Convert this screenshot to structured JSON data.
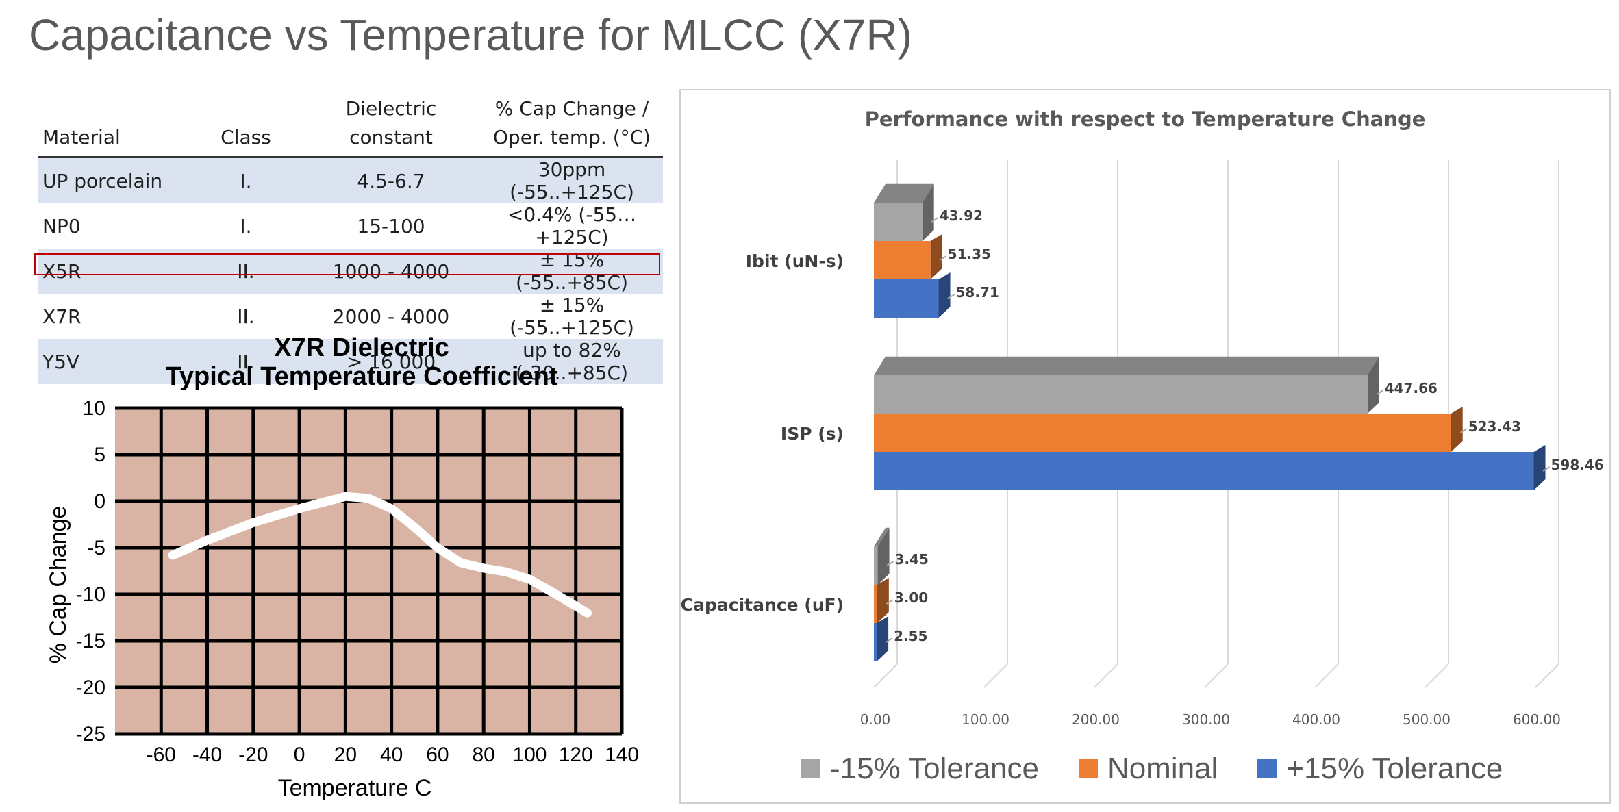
{
  "slide": {
    "title": "Capacitance vs Temperature for MLCC (X7R)"
  },
  "table": {
    "headers": [
      "Material",
      "Class",
      "Dielectric\nconstant",
      "% Cap Change /\nOper. temp. (°C)"
    ],
    "rows": [
      [
        "UP porcelain",
        "I.",
        "4.5-6.7",
        "30ppm (-55..+125C)"
      ],
      [
        "NP0",
        "I.",
        "15-100",
        "<0.4% (-55…+125C)"
      ],
      [
        "X5R",
        "II.",
        "1000 - 4000",
        "± 15% (-55..+85C)"
      ],
      [
        "X7R",
        "II.",
        "2000 - 4000",
        "± 15% (-55..+125C)"
      ],
      [
        "Y5V",
        "II.",
        "> 16 000",
        "up to 82% (-30..+85C)"
      ]
    ],
    "highlighted_row": 3,
    "highlight_color": "#c00000",
    "stripe_color": "#dae3ef"
  },
  "chart_data": [
    {
      "type": "line",
      "title": "X7R Dielectric\nTypical Temperature Coefficient",
      "xlabel": "Temperature C",
      "ylabel": "% Cap Change",
      "xlim": [
        -80,
        140
      ],
      "ylim": [
        -25,
        10
      ],
      "xticks": [
        -60,
        -40,
        -20,
        0,
        20,
        40,
        60,
        80,
        100,
        120,
        140
      ],
      "yticks": [
        10,
        5,
        0,
        -5,
        -10,
        -15,
        -20,
        -25
      ],
      "grid": true,
      "background_color": "#d9b4a4",
      "line_color": "#ffffff",
      "x": [
        -55,
        -40,
        -20,
        0,
        20,
        30,
        40,
        50,
        60,
        70,
        80,
        90,
        100,
        110,
        125
      ],
      "y": [
        -5.8,
        -4.2,
        -2.3,
        -0.8,
        0.5,
        0.3,
        -0.8,
        -2.8,
        -5.0,
        -6.6,
        -7.2,
        -7.6,
        -8.4,
        -9.8,
        -12.0
      ]
    },
    {
      "type": "bar",
      "orientation": "horizontal",
      "style": "3d",
      "title": "Performance with respect to Temperature Change",
      "categories": [
        "Ibit (uN-s)",
        "ISP (s)",
        "Capacitance (uF)"
      ],
      "series": [
        {
          "name": "-15% Tolerance",
          "color": "#a5a5a5",
          "values": [
            43.92,
            447.66,
            3.45
          ]
        },
        {
          "name": "Nominal",
          "color": "#ed7d31",
          "values": [
            51.35,
            523.43,
            3.0
          ]
        },
        {
          "name": "+15% Tolerance",
          "color": "#4472c4",
          "values": [
            58.71,
            598.46,
            2.55
          ]
        }
      ],
      "xlim": [
        0,
        600
      ],
      "xticks": [
        "0.00",
        "100.00",
        "200.00",
        "300.00",
        "400.00",
        "500.00",
        "600.00"
      ],
      "value_labels": [
        [
          "43.92",
          "447.66",
          "3.45"
        ],
        [
          "51.35",
          "523.43",
          "3.00"
        ],
        [
          "58.71",
          "598.46",
          "2.55"
        ]
      ],
      "grid": true,
      "legend_position": "bottom"
    }
  ]
}
